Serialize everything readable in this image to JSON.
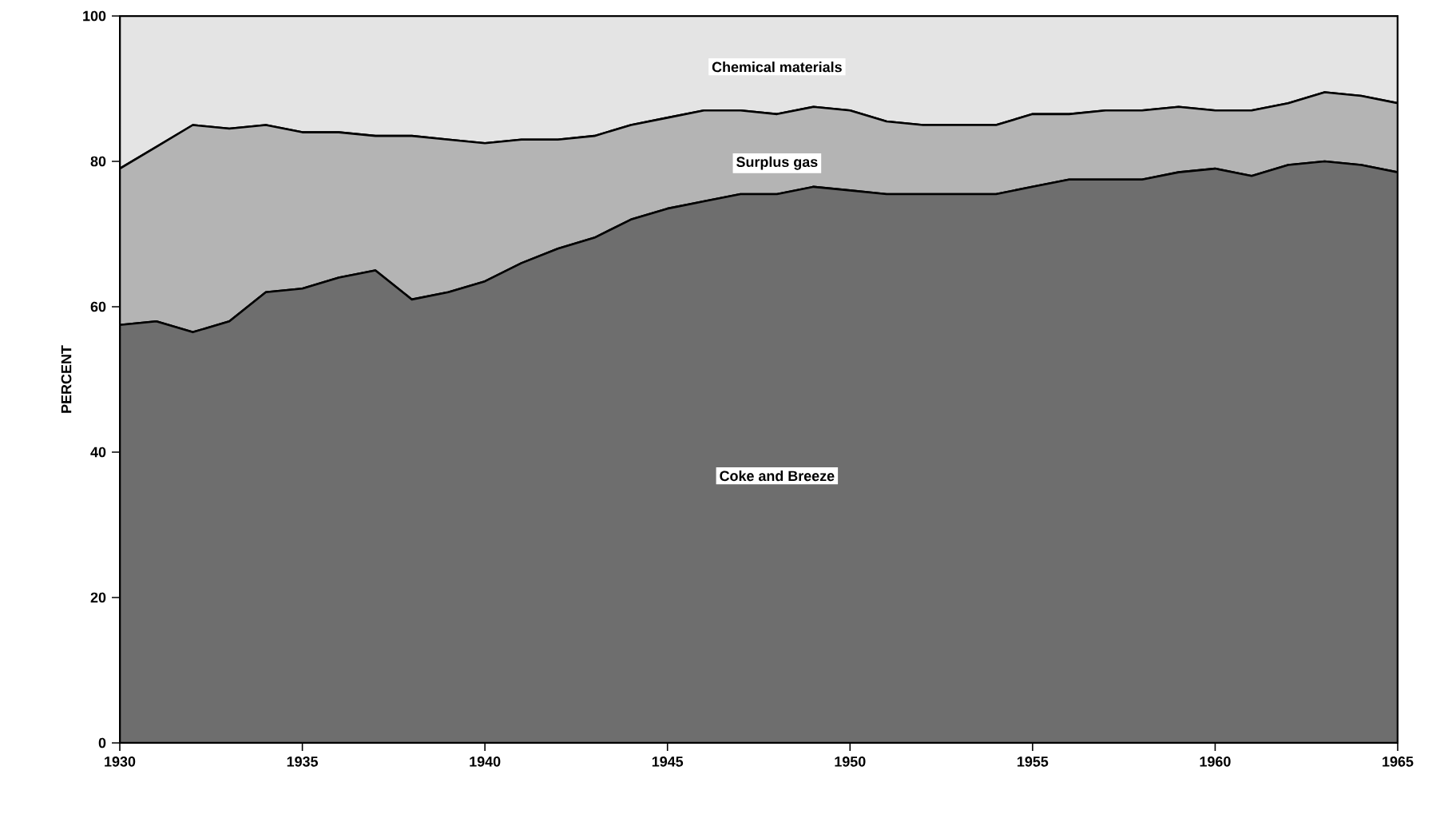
{
  "chart_data": {
    "type": "area",
    "stacked": true,
    "ylabel": "PERCENT",
    "x": [
      1930,
      1931,
      1932,
      1933,
      1934,
      1935,
      1936,
      1937,
      1938,
      1939,
      1940,
      1941,
      1942,
      1943,
      1944,
      1945,
      1946,
      1947,
      1948,
      1949,
      1950,
      1951,
      1952,
      1953,
      1954,
      1955,
      1956,
      1957,
      1958,
      1959,
      1960,
      1961,
      1962,
      1963,
      1964,
      1965
    ],
    "series": [
      {
        "name": "Coke and Breeze",
        "color": "#6e6e6e",
        "values": [
          57.5,
          58,
          56.5,
          58,
          62,
          62.5,
          64,
          65,
          61,
          62,
          63.5,
          66,
          68,
          69.5,
          72,
          73.5,
          74.5,
          75.5,
          75.5,
          76.5,
          76,
          75.5,
          75.5,
          75.5,
          75.5,
          76.5,
          77.5,
          77.5,
          77.5,
          78.5,
          79,
          78,
          79.5,
          80,
          79.5,
          78.5
        ]
      },
      {
        "name": "Surplus gas",
        "color": "#b4b4b4",
        "values": [
          21.5,
          24,
          28.5,
          26.5,
          23,
          21.5,
          20,
          18.5,
          22.5,
          21,
          19,
          17,
          15,
          14,
          13,
          12.5,
          12.5,
          11.5,
          11,
          11,
          11,
          10,
          9.5,
          9.5,
          9.5,
          10,
          9,
          9.5,
          9.5,
          9,
          8,
          9,
          8.5,
          9.5,
          9.5,
          9.5
        ]
      },
      {
        "name": "Chemical materials",
        "color": "#e4e4e4",
        "values": [
          21,
          18,
          15,
          15.5,
          15,
          16,
          16,
          16.5,
          16.5,
          17,
          17.5,
          17,
          17,
          16.5,
          15,
          14,
          13,
          13,
          13.5,
          12.5,
          13,
          14.5,
          15,
          15,
          15,
          13.5,
          13.5,
          13,
          13,
          12.5,
          13,
          13,
          12,
          10.5,
          11,
          12
        ]
      }
    ],
    "xlim": [
      1930,
      1965
    ],
    "xticks": [
      1930,
      1935,
      1940,
      1945,
      1950,
      1955,
      1960,
      1965
    ],
    "ylim": [
      0,
      100
    ],
    "yticks": [
      0,
      20,
      40,
      60,
      80,
      100
    ]
  }
}
